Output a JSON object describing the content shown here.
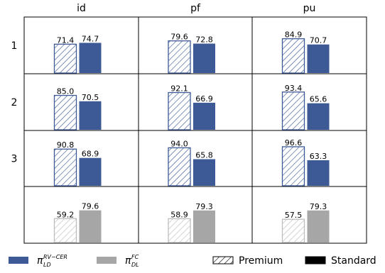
{
  "chart_data": {
    "type": "bar",
    "title": "",
    "columns": [
      "id",
      "pf",
      "pu"
    ],
    "rows": [
      "1",
      "2",
      "3",
      ""
    ],
    "bar_kinds": [
      "Premium",
      "Standard"
    ],
    "ylim": [
      0,
      100
    ],
    "grid": false,
    "legend_position": "bottom",
    "cells": [
      [
        {
          "series": "pi_ld",
          "values": [
            71.4,
            74.7
          ]
        },
        {
          "series": "pi_ld",
          "values": [
            79.6,
            72.8
          ]
        },
        {
          "series": "pi_ld",
          "values": [
            84.9,
            70.7
          ]
        }
      ],
      [
        {
          "series": "pi_ld",
          "values": [
            85.0,
            70.5
          ]
        },
        {
          "series": "pi_ld",
          "values": [
            92.1,
            66.9
          ]
        },
        {
          "series": "pi_ld",
          "values": [
            93.4,
            65.6
          ]
        }
      ],
      [
        {
          "series": "pi_ld",
          "values": [
            90.8,
            68.9
          ]
        },
        {
          "series": "pi_ld",
          "values": [
            94.0,
            65.8
          ]
        },
        {
          "series": "pi_ld",
          "values": [
            96.6,
            63.3
          ]
        }
      ],
      [
        {
          "series": "pi_dl",
          "values": [
            59.2,
            79.6
          ]
        },
        {
          "series": "pi_dl",
          "values": [
            58.9,
            79.3
          ]
        },
        {
          "series": "pi_dl",
          "values": [
            57.5,
            79.3
          ]
        }
      ]
    ],
    "legend": {
      "series": [
        {
          "id": "pi_ld",
          "symbol": "π",
          "sub": "LD",
          "sup": "RV−CER",
          "color": "#3d5a96"
        },
        {
          "id": "pi_dl",
          "symbol": "π",
          "sub": "DL",
          "sup": "FC",
          "color": "#a6a6a6"
        }
      ],
      "kinds": [
        {
          "label": "Premium",
          "style": "hatched"
        },
        {
          "label": "Standard",
          "style": "solid"
        }
      ]
    }
  }
}
